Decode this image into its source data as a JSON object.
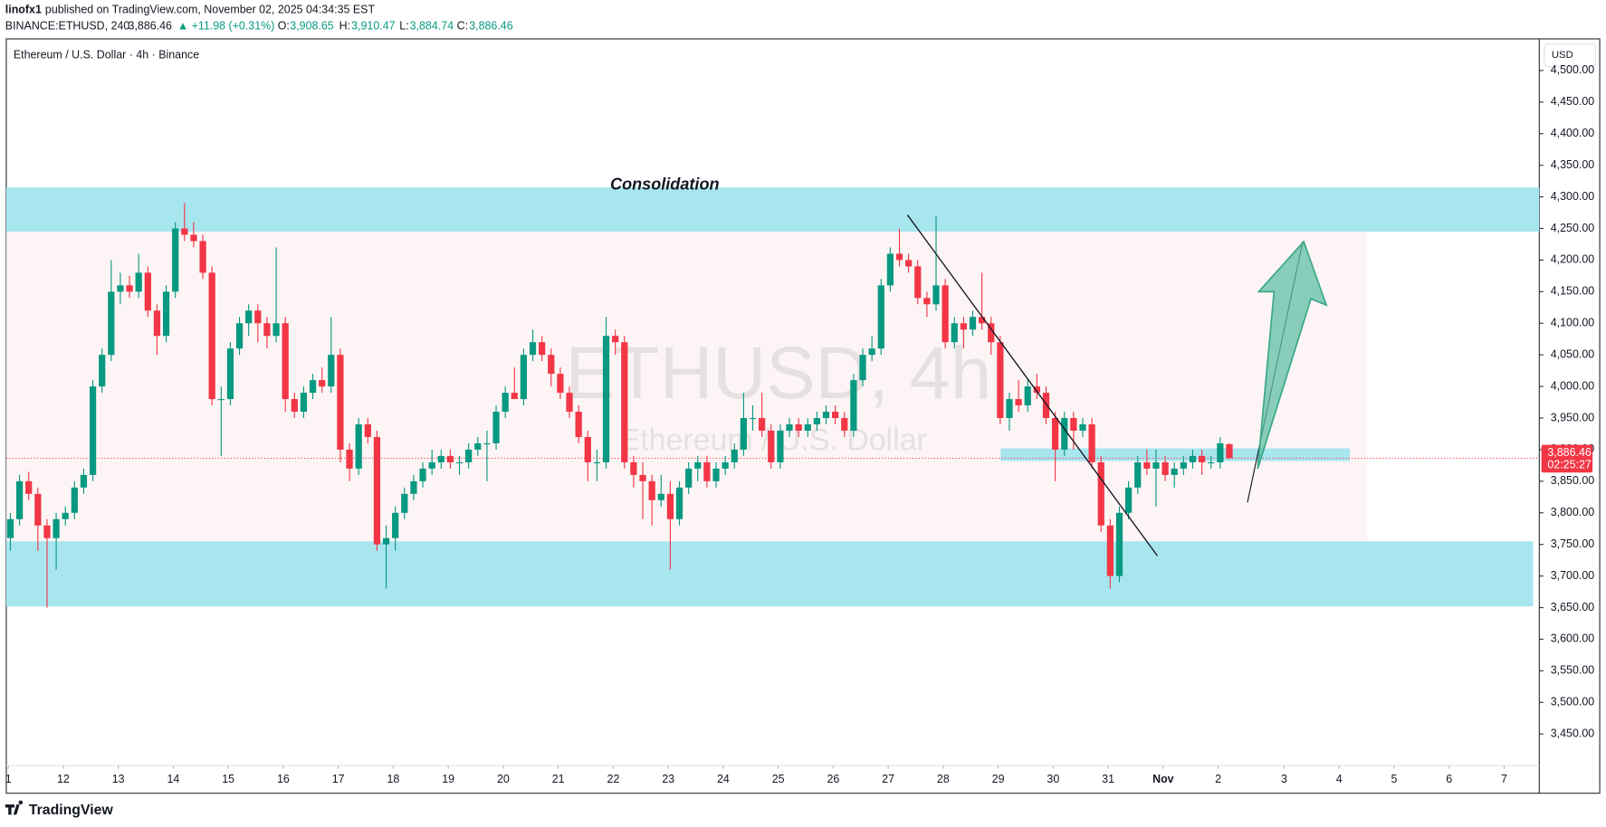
{
  "header": {
    "author": "linofx1",
    "published": "published on TradingView.com, November 02, 2025 04:34:35 EST",
    "symbol": "BINANCE:ETHUSD, 240",
    "last": "3,886.46",
    "change": "▲ +11.98 (+0.31%)",
    "o_label": "O:",
    "o": "3,908.65",
    "h_label": "H:",
    "h": "3,910.47",
    "l_label": "L:",
    "l": "3,884.74",
    "c_label": "C:",
    "c": "3,886.46"
  },
  "footer": {
    "brand": "TradingView"
  },
  "chart_data": {
    "type": "candlestick",
    "title": "Ethereum / U.S. Dollar · 4h · Binance",
    "currency": "USD",
    "watermark": "ETHUSD, 4h",
    "watermark_sub": "Ethereum / U.S. Dollar",
    "annotation": "Consolidation",
    "up_color": "#089981",
    "down_color": "#f23645",
    "ylim": [
      3400,
      4550
    ],
    "yticks": [
      {
        "value": 4500,
        "label": "4,500.00"
      },
      {
        "value": 4450,
        "label": "4,450.00"
      },
      {
        "value": 4400,
        "label": "4,400.00"
      },
      {
        "value": 4350,
        "label": "4,350.00"
      },
      {
        "value": 4300,
        "label": "4,300.00"
      },
      {
        "value": 4250,
        "label": "4,250.00"
      },
      {
        "value": 4200,
        "label": "4,200.00"
      },
      {
        "value": 4150,
        "label": "4,150.00"
      },
      {
        "value": 4100,
        "label": "4,100.00"
      },
      {
        "value": 4050,
        "label": "4,050.00"
      },
      {
        "value": 4000,
        "label": "4,000.00"
      },
      {
        "value": 3950,
        "label": "3,950.00"
      },
      {
        "value": 3900,
        "label": "3,900.00"
      },
      {
        "value": 3850,
        "label": "3,850.00"
      },
      {
        "value": 3800,
        "label": "3,800.00"
      },
      {
        "value": 3750,
        "label": "3,750.00"
      },
      {
        "value": 3700,
        "label": "3,700.00"
      },
      {
        "value": 3650,
        "label": "3,650.00"
      },
      {
        "value": 3600,
        "label": "3,600.00"
      },
      {
        "value": 3550,
        "label": "3,550.00"
      },
      {
        "value": 3500,
        "label": "3,500.00"
      },
      {
        "value": 3450,
        "label": "3,450.00"
      }
    ],
    "xticks": [
      {
        "value": 0,
        "label": "1"
      },
      {
        "value": 1,
        "label": "12"
      },
      {
        "value": 2,
        "label": "13"
      },
      {
        "value": 3,
        "label": "14"
      },
      {
        "value": 4,
        "label": "15"
      },
      {
        "value": 5,
        "label": "16"
      },
      {
        "value": 6,
        "label": "17"
      },
      {
        "value": 7,
        "label": "18"
      },
      {
        "value": 8,
        "label": "19"
      },
      {
        "value": 9,
        "label": "20"
      },
      {
        "value": 10,
        "label": "21"
      },
      {
        "value": 11,
        "label": "22"
      },
      {
        "value": 12,
        "label": "23"
      },
      {
        "value": 13,
        "label": "24"
      },
      {
        "value": 14,
        "label": "25"
      },
      {
        "value": 15,
        "label": "26"
      },
      {
        "value": 16,
        "label": "27"
      },
      {
        "value": 17,
        "label": "28"
      },
      {
        "value": 18,
        "label": "29"
      },
      {
        "value": 19,
        "label": "30"
      },
      {
        "value": 20,
        "label": "31"
      },
      {
        "value": 21,
        "label": "Nov"
      },
      {
        "value": 22,
        "label": "2"
      },
      {
        "value": 23.2,
        "label": "3"
      },
      {
        "value": 24.2,
        "label": "4"
      },
      {
        "value": 25.2,
        "label": "5"
      },
      {
        "value": 26.2,
        "label": "6"
      },
      {
        "value": 27.2,
        "label": "7"
      }
    ],
    "last_price": 3886.46,
    "last_price_label": "3,886.46",
    "countdown": "02:25:27",
    "zones": [
      {
        "from": 4245,
        "to": 4315
      },
      {
        "from": 3652,
        "to": 3755
      },
      {
        "from": 3882,
        "to": 3902
      }
    ],
    "range": {
      "from": 3755,
      "to": 4245
    },
    "candles": [
      [
        3760,
        3800,
        3740,
        3790
      ],
      [
        3790,
        3860,
        3780,
        3850
      ],
      [
        3850,
        3865,
        3820,
        3830
      ],
      [
        3830,
        3840,
        3740,
        3780
      ],
      [
        3780,
        3790,
        3650,
        3760
      ],
      [
        3760,
        3800,
        3710,
        3790
      ],
      [
        3790,
        3810,
        3780,
        3800
      ],
      [
        3800,
        3850,
        3790,
        3840
      ],
      [
        3840,
        3870,
        3830,
        3860
      ],
      [
        3860,
        4010,
        3850,
        4000
      ],
      [
        4000,
        4060,
        3990,
        4050
      ],
      [
        4050,
        4200,
        4040,
        4150
      ],
      [
        4150,
        4180,
        4130,
        4160
      ],
      [
        4160,
        4175,
        4140,
        4150
      ],
      [
        4150,
        4210,
        4140,
        4180
      ],
      [
        4180,
        4190,
        4110,
        4120
      ],
      [
        4120,
        4130,
        4050,
        4080
      ],
      [
        4080,
        4160,
        4070,
        4150
      ],
      [
        4150,
        4260,
        4140,
        4250
      ],
      [
        4250,
        4290,
        4230,
        4240
      ],
      [
        4240,
        4260,
        4220,
        4230
      ],
      [
        4230,
        4240,
        4170,
        4180
      ],
      [
        4180,
        4190,
        3970,
        3980
      ],
      [
        3980,
        4000,
        3890,
        3980
      ],
      [
        3980,
        4070,
        3970,
        4060
      ],
      [
        4060,
        4110,
        4050,
        4100
      ],
      [
        4100,
        4130,
        4080,
        4120
      ],
      [
        4120,
        4130,
        4070,
        4100
      ],
      [
        4100,
        4110,
        4060,
        4080
      ],
      [
        4080,
        4220,
        4070,
        4100
      ],
      [
        4100,
        4110,
        3960,
        3980
      ],
      [
        3980,
        3990,
        3950,
        3960
      ],
      [
        3960,
        4000,
        3950,
        3990
      ],
      [
        3990,
        4020,
        3980,
        4010
      ],
      [
        4010,
        4030,
        3990,
        4000
      ],
      [
        4000,
        4110,
        3990,
        4050
      ],
      [
        4050,
        4060,
        3880,
        3900
      ],
      [
        3900,
        3910,
        3850,
        3870
      ],
      [
        3870,
        3950,
        3860,
        3940
      ],
      [
        3940,
        3950,
        3910,
        3920
      ],
      [
        3920,
        3930,
        3740,
        3750
      ],
      [
        3750,
        3780,
        3680,
        3760
      ],
      [
        3760,
        3810,
        3740,
        3800
      ],
      [
        3800,
        3840,
        3790,
        3830
      ],
      [
        3830,
        3860,
        3820,
        3850
      ],
      [
        3850,
        3880,
        3840,
        3870
      ],
      [
        3870,
        3900,
        3860,
        3880
      ],
      [
        3880,
        3900,
        3870,
        3890
      ],
      [
        3890,
        3900,
        3870,
        3880
      ],
      [
        3880,
        3890,
        3860,
        3880
      ],
      [
        3880,
        3910,
        3870,
        3900
      ],
      [
        3900,
        3920,
        3890,
        3910
      ],
      [
        3910,
        3930,
        3850,
        3910
      ],
      [
        3910,
        3970,
        3900,
        3960
      ],
      [
        3960,
        4000,
        3950,
        3990
      ],
      [
        3990,
        4030,
        3980,
        3980
      ],
      [
        3980,
        4060,
        3970,
        4050
      ],
      [
        4050,
        4090,
        4040,
        4070
      ],
      [
        4070,
        4080,
        4040,
        4050
      ],
      [
        4050,
        4060,
        4000,
        4020
      ],
      [
        4020,
        4030,
        3980,
        3990
      ],
      [
        3990,
        4000,
        3950,
        3960
      ],
      [
        3960,
        3970,
        3910,
        3920
      ],
      [
        3920,
        3930,
        3850,
        3880
      ],
      [
        3880,
        3900,
        3850,
        3880
      ],
      [
        3880,
        4110,
        3870,
        4080
      ],
      [
        4080,
        4090,
        4050,
        4070
      ],
      [
        4070,
        4080,
        3870,
        3880
      ],
      [
        3880,
        3890,
        3840,
        3860
      ],
      [
        3860,
        3880,
        3790,
        3850
      ],
      [
        3850,
        3860,
        3780,
        3820
      ],
      [
        3820,
        3860,
        3810,
        3830
      ],
      [
        3830,
        3850,
        3710,
        3790
      ],
      [
        3790,
        3850,
        3780,
        3840
      ],
      [
        3840,
        3880,
        3830,
        3870
      ],
      [
        3870,
        3890,
        3850,
        3880
      ],
      [
        3880,
        3890,
        3840,
        3850
      ],
      [
        3850,
        3880,
        3840,
        3870
      ],
      [
        3870,
        3890,
        3860,
        3880
      ],
      [
        3880,
        3910,
        3870,
        3900
      ],
      [
        3900,
        3990,
        3890,
        3950
      ],
      [
        3950,
        3970,
        3930,
        3950
      ],
      [
        3950,
        3990,
        3920,
        3930
      ],
      [
        3930,
        3940,
        3870,
        3880
      ],
      [
        3880,
        3940,
        3870,
        3930
      ],
      [
        3930,
        3950,
        3920,
        3940
      ],
      [
        3940,
        3950,
        3920,
        3930
      ],
      [
        3930,
        3950,
        3920,
        3940
      ],
      [
        3940,
        3960,
        3930,
        3950
      ],
      [
        3950,
        3970,
        3940,
        3960
      ],
      [
        3960,
        3970,
        3940,
        3950
      ],
      [
        3950,
        3960,
        3920,
        3930
      ],
      [
        3930,
        4020,
        3920,
        4010
      ],
      [
        4010,
        4060,
        4000,
        4050
      ],
      [
        4050,
        4080,
        4040,
        4060
      ],
      [
        4060,
        4170,
        4050,
        4160
      ],
      [
        4160,
        4220,
        4150,
        4210
      ],
      [
        4210,
        4250,
        4190,
        4200
      ],
      [
        4200,
        4210,
        4180,
        4190
      ],
      [
        4190,
        4200,
        4130,
        4140
      ],
      [
        4140,
        4150,
        4110,
        4130
      ],
      [
        4130,
        4270,
        4120,
        4160
      ],
      [
        4160,
        4170,
        4060,
        4070
      ],
      [
        4070,
        4110,
        4060,
        4100
      ],
      [
        4100,
        4110,
        4060,
        4090
      ],
      [
        4090,
        4120,
        4080,
        4110
      ],
      [
        4110,
        4180,
        4090,
        4100
      ],
      [
        4100,
        4110,
        4050,
        4070
      ],
      [
        4070,
        4080,
        3940,
        3950
      ],
      [
        3950,
        3990,
        3930,
        3980
      ],
      [
        3980,
        4010,
        3960,
        3970
      ],
      [
        3970,
        4010,
        3960,
        4000
      ],
      [
        4000,
        4020,
        3980,
        3990
      ],
      [
        3990,
        4000,
        3940,
        3950
      ],
      [
        3950,
        3960,
        3850,
        3900
      ],
      [
        3900,
        3960,
        3890,
        3950
      ],
      [
        3950,
        3960,
        3900,
        3930
      ],
      [
        3930,
        3950,
        3920,
        3940
      ],
      [
        3940,
        3950,
        3870,
        3880
      ],
      [
        3880,
        3890,
        3770,
        3780
      ],
      [
        3780,
        3790,
        3680,
        3700
      ],
      [
        3700,
        3810,
        3690,
        3800
      ],
      [
        3800,
        3850,
        3790,
        3840
      ],
      [
        3840,
        3890,
        3830,
        3880
      ],
      [
        3880,
        3900,
        3860,
        3870
      ],
      [
        3870,
        3900,
        3810,
        3880
      ],
      [
        3880,
        3890,
        3850,
        3860
      ],
      [
        3860,
        3880,
        3840,
        3870
      ],
      [
        3870,
        3890,
        3860,
        3880
      ],
      [
        3880,
        3900,
        3870,
        3890
      ],
      [
        3890,
        3900,
        3860,
        3880
      ],
      [
        3880,
        3890,
        3870,
        3880
      ],
      [
        3880,
        3920,
        3870,
        3910
      ],
      [
        3908.65,
        3910.47,
        3884.74,
        3886.46
      ]
    ]
  }
}
